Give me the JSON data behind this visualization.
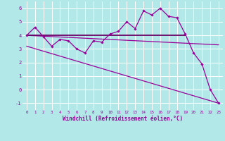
{
  "xlabel": "Windchill (Refroidissement éolien,°C)",
  "background_color": "#b2e8e8",
  "grid_color": "#ffffff",
  "line_color": "#990099",
  "dark_line_color": "#660066",
  "xlim": [
    -0.5,
    23.5
  ],
  "ylim": [
    -1.5,
    6.5
  ],
  "xticks": [
    0,
    1,
    2,
    3,
    4,
    5,
    6,
    7,
    8,
    9,
    10,
    11,
    12,
    13,
    14,
    15,
    16,
    17,
    18,
    19,
    20,
    21,
    22,
    23
  ],
  "yticks": [
    -1,
    0,
    1,
    2,
    3,
    4,
    5,
    6
  ],
  "line1_x": [
    0,
    1,
    2,
    3,
    4,
    5,
    6,
    7,
    8,
    9,
    10,
    11,
    12,
    13,
    14,
    15,
    16,
    17,
    18,
    19,
    20,
    21,
    22,
    23
  ],
  "line1_y": [
    4.0,
    4.6,
    3.9,
    3.2,
    3.7,
    3.6,
    3.0,
    2.7,
    3.6,
    3.5,
    4.1,
    4.3,
    5.0,
    4.5,
    5.8,
    5.5,
    6.0,
    5.4,
    5.3,
    4.1,
    2.7,
    1.9,
    0.0,
    -1.0
  ],
  "line2_x": [
    0,
    19
  ],
  "line2_y": [
    4.0,
    4.0
  ],
  "line3_x": [
    0,
    23
  ],
  "line3_y": [
    4.0,
    3.3
  ],
  "line4_x": [
    0,
    23
  ],
  "line4_y": [
    3.2,
    -1.0
  ]
}
